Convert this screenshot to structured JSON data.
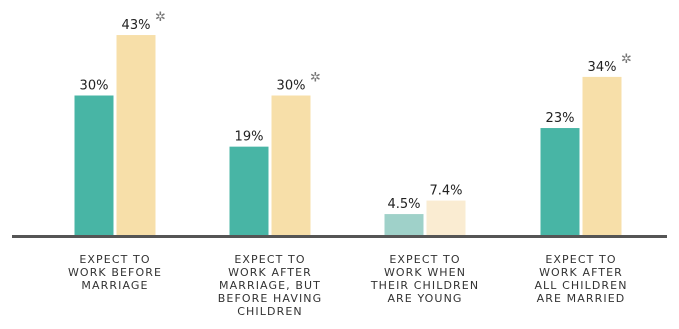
{
  "chart_data": {
    "type": "bar",
    "categories": [
      [
        "EXPECT TO",
        "WORK BEFORE",
        "MARRIAGE"
      ],
      [
        "EXPECT TO",
        "WORK AFTER",
        "MARRIAGE, BUT",
        "BEFORE HAVING",
        "CHILDREN"
      ],
      [
        "EXPECT TO",
        "WORK WHEN",
        "THEIR CHILDREN",
        "ARE YOUNG"
      ],
      [
        "EXPECT TO",
        "WORK AFTER",
        "ALL CHILDREN",
        "ARE MARRIED"
      ]
    ],
    "series": [
      {
        "values": [
          30,
          19,
          4.5,
          23
        ],
        "value_labels": [
          "30%",
          "19%",
          "4.5%",
          "23%"
        ],
        "color": "#48b5a5",
        "muted": [
          false,
          false,
          true,
          false
        ],
        "muted_color": "#9fd1c9"
      },
      {
        "values": [
          43,
          30,
          7.4,
          34
        ],
        "value_labels": [
          "43%",
          "30%",
          "7.4%",
          "34%"
        ],
        "color": "#f7dfa9",
        "muted": [
          false,
          false,
          true,
          false
        ],
        "muted_color": "#faecd2",
        "significant": [
          true,
          true,
          false,
          true
        ]
      }
    ],
    "significance_marker": "✲",
    "ylim": [
      0,
      45
    ],
    "grid": false,
    "legend": "none",
    "axis_color": "#555555"
  }
}
